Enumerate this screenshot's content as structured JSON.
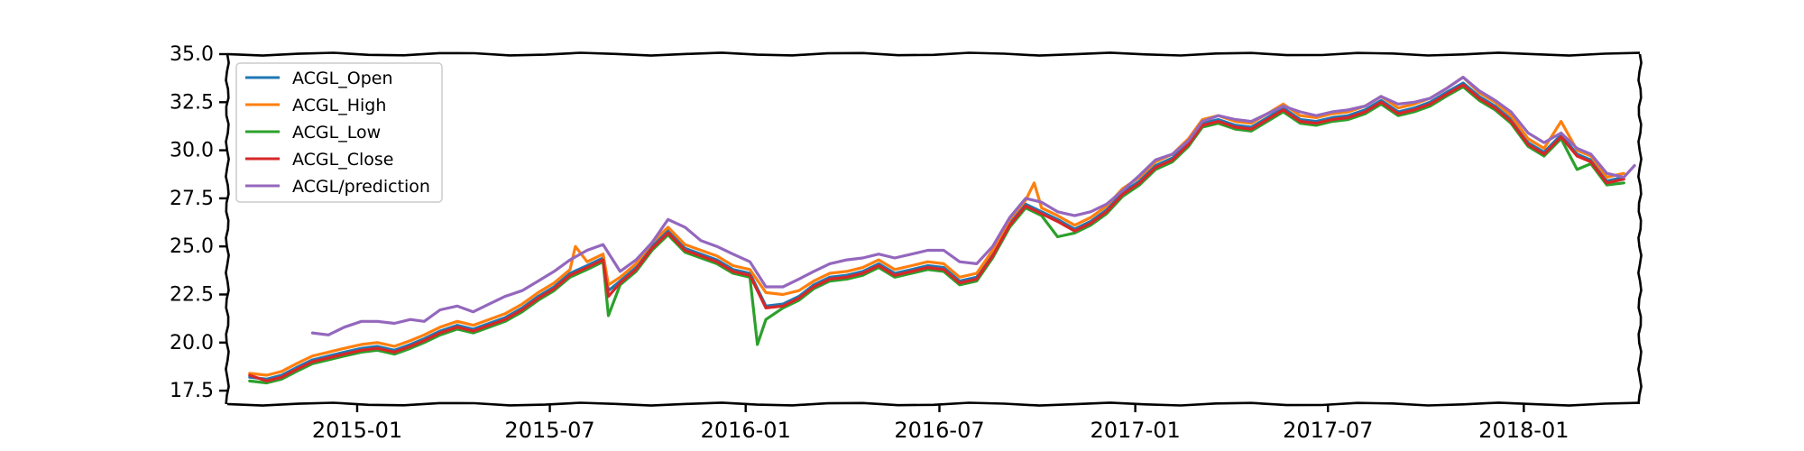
{
  "chart_data": {
    "type": "line",
    "title": "",
    "xlabel": "",
    "ylabel": "",
    "ylim": [
      16.8,
      35.0
    ],
    "xlim": [
      "2014-09-01",
      "2018-04-20"
    ],
    "grid": false,
    "legend_position": "top-left",
    "y_ticks": [
      "17.5",
      "20.0",
      "22.5",
      "25.0",
      "27.5",
      "30.0",
      "32.5",
      "35.0"
    ],
    "y_tick_values": [
      17.5,
      20.0,
      22.5,
      25.0,
      27.5,
      30.0,
      32.5,
      35.0
    ],
    "x_ticks": [
      "2015-01",
      "2015-07",
      "2016-01",
      "2016-07",
      "2017-01",
      "2017-07",
      "2018-01"
    ],
    "x_tick_dates": [
      "2015-01-01",
      "2015-07-01",
      "2016-01-01",
      "2016-07-01",
      "2017-01-01",
      "2017-07-01",
      "2018-01-01"
    ],
    "series": [
      {
        "name": "ACGL_Open",
        "color": "#1f77b4",
        "x": [
          "2014-09-22",
          "2014-10-08",
          "2014-10-22",
          "2014-11-05",
          "2014-11-20",
          "2014-12-05",
          "2014-12-20",
          "2015-01-05",
          "2015-01-20",
          "2015-02-05",
          "2015-02-20",
          "2015-03-05",
          "2015-03-20",
          "2015-04-05",
          "2015-04-20",
          "2015-05-05",
          "2015-05-20",
          "2015-06-05",
          "2015-06-20",
          "2015-07-05",
          "2015-07-20",
          "2015-08-05",
          "2015-08-20",
          "2015-08-25",
          "2015-09-05",
          "2015-09-20",
          "2015-10-05",
          "2015-10-20",
          "2015-11-05",
          "2015-11-20",
          "2015-12-05",
          "2015-12-20",
          "2016-01-05",
          "2016-01-20",
          "2016-02-05",
          "2016-02-20",
          "2016-03-05",
          "2016-03-20",
          "2016-04-05",
          "2016-04-20",
          "2016-05-05",
          "2016-05-20",
          "2016-06-05",
          "2016-06-20",
          "2016-07-05",
          "2016-07-20",
          "2016-08-05",
          "2016-08-20",
          "2016-09-05",
          "2016-09-20",
          "2016-10-05",
          "2016-10-20",
          "2016-11-05",
          "2016-11-20",
          "2016-12-05",
          "2016-12-20",
          "2017-01-05",
          "2017-01-20",
          "2017-02-05",
          "2017-02-20",
          "2017-03-05",
          "2017-03-20",
          "2017-04-05",
          "2017-04-20",
          "2017-05-05",
          "2017-05-20",
          "2017-06-05",
          "2017-06-20",
          "2017-07-05",
          "2017-07-20",
          "2017-08-05",
          "2017-08-20",
          "2017-09-05",
          "2017-09-20",
          "2017-10-05",
          "2017-10-20",
          "2017-11-05",
          "2017-11-20",
          "2017-12-05",
          "2017-12-20",
          "2018-01-05",
          "2018-01-20",
          "2018-02-05",
          "2018-02-20",
          "2018-03-05",
          "2018-03-20",
          "2018-04-05"
        ],
        "values": [
          18.2,
          18.1,
          18.3,
          18.7,
          19.1,
          19.3,
          19.5,
          19.7,
          19.8,
          19.6,
          19.9,
          20.2,
          20.6,
          20.9,
          20.7,
          21.0,
          21.3,
          21.8,
          22.4,
          22.9,
          23.6,
          24.0,
          24.4,
          22.7,
          23.2,
          23.9,
          25.0,
          25.8,
          24.9,
          24.6,
          24.3,
          23.8,
          23.6,
          21.9,
          22.0,
          22.4,
          23.0,
          23.4,
          23.5,
          23.7,
          24.1,
          23.6,
          23.8,
          24.0,
          23.9,
          23.2,
          23.4,
          24.6,
          26.2,
          27.2,
          26.8,
          26.4,
          25.9,
          26.3,
          26.9,
          27.8,
          28.4,
          29.2,
          29.6,
          30.4,
          31.4,
          31.6,
          31.3,
          31.2,
          31.7,
          32.2,
          31.6,
          31.5,
          31.7,
          31.8,
          32.1,
          32.6,
          32.0,
          32.2,
          32.5,
          33.0,
          33.5,
          32.8,
          32.3,
          31.6,
          30.4,
          29.9,
          30.8,
          29.8,
          29.5,
          28.4,
          28.6
        ]
      },
      {
        "name": "ACGL_High",
        "color": "#ff7f0e",
        "x": [
          "2014-09-22",
          "2014-10-08",
          "2014-10-22",
          "2014-11-05",
          "2014-11-20",
          "2014-12-05",
          "2014-12-20",
          "2015-01-05",
          "2015-01-20",
          "2015-02-05",
          "2015-02-20",
          "2015-03-05",
          "2015-03-20",
          "2015-04-05",
          "2015-04-20",
          "2015-05-05",
          "2015-05-20",
          "2015-06-05",
          "2015-06-20",
          "2015-07-05",
          "2015-07-20",
          "2015-07-25",
          "2015-08-05",
          "2015-08-20",
          "2015-08-25",
          "2015-09-05",
          "2015-09-20",
          "2015-10-05",
          "2015-10-20",
          "2015-11-05",
          "2015-11-20",
          "2015-12-05",
          "2015-12-20",
          "2016-01-05",
          "2016-01-20",
          "2016-02-05",
          "2016-02-20",
          "2016-03-05",
          "2016-03-20",
          "2016-04-05",
          "2016-04-20",
          "2016-05-05",
          "2016-05-20",
          "2016-06-05",
          "2016-06-20",
          "2016-07-05",
          "2016-07-20",
          "2016-08-05",
          "2016-08-20",
          "2016-09-05",
          "2016-09-20",
          "2016-09-28",
          "2016-10-05",
          "2016-10-20",
          "2016-11-05",
          "2016-11-20",
          "2016-12-05",
          "2016-12-20",
          "2017-01-05",
          "2017-01-20",
          "2017-02-05",
          "2017-02-20",
          "2017-03-05",
          "2017-03-20",
          "2017-04-05",
          "2017-04-20",
          "2017-05-05",
          "2017-05-20",
          "2017-06-05",
          "2017-06-20",
          "2017-07-05",
          "2017-07-20",
          "2017-08-05",
          "2017-08-20",
          "2017-09-05",
          "2017-09-20",
          "2017-10-05",
          "2017-10-20",
          "2017-11-05",
          "2017-11-20",
          "2017-12-05",
          "2017-12-20",
          "2018-01-05",
          "2018-01-20",
          "2018-02-05",
          "2018-02-20",
          "2018-03-05",
          "2018-03-20",
          "2018-04-05"
        ],
        "values": [
          18.4,
          18.3,
          18.5,
          18.9,
          19.3,
          19.5,
          19.7,
          19.9,
          20.0,
          19.8,
          20.1,
          20.4,
          20.8,
          21.1,
          20.9,
          21.2,
          21.5,
          22.0,
          22.6,
          23.1,
          23.8,
          25.0,
          24.2,
          24.6,
          23.0,
          23.4,
          24.1,
          25.2,
          26.0,
          25.1,
          24.8,
          24.5,
          24.0,
          23.8,
          22.6,
          22.5,
          22.7,
          23.2,
          23.6,
          23.7,
          23.9,
          24.3,
          23.8,
          24.0,
          24.2,
          24.1,
          23.4,
          23.6,
          24.8,
          26.4,
          27.4,
          28.3,
          27.0,
          26.6,
          26.1,
          26.5,
          27.1,
          28.0,
          28.6,
          29.4,
          29.8,
          30.6,
          31.6,
          31.8,
          31.5,
          31.4,
          31.9,
          32.4,
          31.8,
          31.7,
          31.9,
          32.0,
          32.3,
          32.8,
          32.2,
          32.4,
          32.7,
          33.2,
          33.8,
          33.0,
          32.5,
          31.8,
          30.6,
          30.1,
          31.5,
          30.0,
          29.7,
          28.6,
          28.8
        ]
      },
      {
        "name": "ACGL_Low",
        "color": "#2ca02c",
        "x": [
          "2014-09-22",
          "2014-10-08",
          "2014-10-22",
          "2014-11-05",
          "2014-11-20",
          "2014-12-05",
          "2014-12-20",
          "2015-01-05",
          "2015-01-20",
          "2015-02-05",
          "2015-02-20",
          "2015-03-05",
          "2015-03-20",
          "2015-04-05",
          "2015-04-20",
          "2015-05-05",
          "2015-05-20",
          "2015-06-05",
          "2015-06-20",
          "2015-07-05",
          "2015-07-20",
          "2015-08-05",
          "2015-08-20",
          "2015-08-25",
          "2015-09-05",
          "2015-09-20",
          "2015-10-05",
          "2015-10-20",
          "2015-11-05",
          "2015-11-20",
          "2015-12-05",
          "2015-12-20",
          "2016-01-05",
          "2016-01-12",
          "2016-01-20",
          "2016-02-05",
          "2016-02-20",
          "2016-03-05",
          "2016-03-20",
          "2016-04-05",
          "2016-04-20",
          "2016-05-05",
          "2016-05-20",
          "2016-06-05",
          "2016-06-20",
          "2016-07-05",
          "2016-07-20",
          "2016-08-05",
          "2016-08-20",
          "2016-09-05",
          "2016-09-20",
          "2016-10-05",
          "2016-10-20",
          "2016-11-05",
          "2016-11-20",
          "2016-12-05",
          "2016-12-20",
          "2017-01-05",
          "2017-01-20",
          "2017-02-05",
          "2017-02-20",
          "2017-03-05",
          "2017-03-20",
          "2017-04-05",
          "2017-04-20",
          "2017-05-05",
          "2017-05-20",
          "2017-06-05",
          "2017-06-20",
          "2017-07-05",
          "2017-07-20",
          "2017-08-05",
          "2017-08-20",
          "2017-09-05",
          "2017-09-20",
          "2017-10-05",
          "2017-10-20",
          "2017-11-05",
          "2017-11-20",
          "2017-12-05",
          "2017-12-20",
          "2018-01-05",
          "2018-01-20",
          "2018-02-05",
          "2018-02-20",
          "2018-03-05",
          "2018-03-20",
          "2018-04-05"
        ],
        "values": [
          18.0,
          17.9,
          18.1,
          18.5,
          18.9,
          19.1,
          19.3,
          19.5,
          19.6,
          19.4,
          19.7,
          20.0,
          20.4,
          20.7,
          20.5,
          20.8,
          21.1,
          21.6,
          22.2,
          22.7,
          23.4,
          23.8,
          24.2,
          21.4,
          23.0,
          23.7,
          24.8,
          25.6,
          24.7,
          24.4,
          24.1,
          23.6,
          23.4,
          19.9,
          21.2,
          21.8,
          22.2,
          22.8,
          23.2,
          23.3,
          23.5,
          23.9,
          23.4,
          23.6,
          23.8,
          23.7,
          23.0,
          23.2,
          24.4,
          26.0,
          27.0,
          26.6,
          25.5,
          25.7,
          26.1,
          26.7,
          27.6,
          28.2,
          29.0,
          29.4,
          30.2,
          31.2,
          31.4,
          31.1,
          31.0,
          31.5,
          32.0,
          31.4,
          31.3,
          31.5,
          31.6,
          31.9,
          32.4,
          31.8,
          32.0,
          32.3,
          32.8,
          33.3,
          32.6,
          32.1,
          31.4,
          30.2,
          29.7,
          30.6,
          29.0,
          29.3,
          28.2,
          28.3
        ]
      },
      {
        "name": "ACGL_Close",
        "color": "#d62728",
        "x": [
          "2014-09-22",
          "2014-10-08",
          "2014-10-22",
          "2014-11-05",
          "2014-11-20",
          "2014-12-05",
          "2014-12-20",
          "2015-01-05",
          "2015-01-20",
          "2015-02-05",
          "2015-02-20",
          "2015-03-05",
          "2015-03-20",
          "2015-04-05",
          "2015-04-20",
          "2015-05-05",
          "2015-05-20",
          "2015-06-05",
          "2015-06-20",
          "2015-07-05",
          "2015-07-20",
          "2015-08-05",
          "2015-08-20",
          "2015-08-25",
          "2015-09-05",
          "2015-09-20",
          "2015-10-05",
          "2015-10-20",
          "2015-11-05",
          "2015-11-20",
          "2015-12-05",
          "2015-12-20",
          "2016-01-05",
          "2016-01-20",
          "2016-02-05",
          "2016-02-20",
          "2016-03-05",
          "2016-03-20",
          "2016-04-05",
          "2016-04-20",
          "2016-05-05",
          "2016-05-20",
          "2016-06-05",
          "2016-06-20",
          "2016-07-05",
          "2016-07-20",
          "2016-08-05",
          "2016-08-20",
          "2016-09-05",
          "2016-09-20",
          "2016-10-05",
          "2016-10-20",
          "2016-11-05",
          "2016-11-20",
          "2016-12-05",
          "2016-12-20",
          "2017-01-05",
          "2017-01-20",
          "2017-02-05",
          "2017-02-20",
          "2017-03-05",
          "2017-03-20",
          "2017-04-05",
          "2017-04-20",
          "2017-05-05",
          "2017-05-20",
          "2017-06-05",
          "2017-06-20",
          "2017-07-05",
          "2017-07-20",
          "2017-08-05",
          "2017-08-20",
          "2017-09-05",
          "2017-09-20",
          "2017-10-05",
          "2017-10-20",
          "2017-11-05",
          "2017-11-20",
          "2017-12-05",
          "2017-12-20",
          "2018-01-05",
          "2018-01-20",
          "2018-02-05",
          "2018-02-20",
          "2018-03-05",
          "2018-03-20",
          "2018-04-05"
        ],
        "values": [
          18.3,
          18.0,
          18.2,
          18.6,
          19.0,
          19.2,
          19.4,
          19.6,
          19.7,
          19.5,
          19.8,
          20.1,
          20.5,
          20.8,
          20.6,
          20.9,
          21.2,
          21.7,
          22.3,
          22.8,
          23.5,
          23.9,
          24.3,
          22.4,
          23.1,
          23.8,
          24.9,
          25.7,
          24.8,
          24.5,
          24.2,
          23.7,
          23.5,
          21.8,
          21.9,
          22.3,
          22.9,
          23.3,
          23.4,
          23.6,
          24.0,
          23.5,
          23.7,
          23.9,
          23.8,
          23.1,
          23.3,
          24.5,
          26.1,
          27.1,
          26.7,
          26.3,
          25.8,
          26.2,
          26.8,
          27.7,
          28.3,
          29.1,
          29.5,
          30.3,
          31.3,
          31.5,
          31.2,
          31.1,
          31.6,
          32.1,
          31.5,
          31.4,
          31.6,
          31.7,
          32.0,
          32.5,
          31.9,
          32.1,
          32.4,
          32.9,
          33.4,
          32.7,
          32.2,
          31.5,
          30.3,
          29.8,
          30.7,
          29.7,
          29.4,
          28.3,
          28.5
        ]
      },
      {
        "name": "ACGL/prediction",
        "color": "#9467bd",
        "x": [
          "2014-11-20",
          "2014-12-05",
          "2014-12-20",
          "2015-01-05",
          "2015-01-20",
          "2015-02-05",
          "2015-02-20",
          "2015-03-05",
          "2015-03-20",
          "2015-04-05",
          "2015-04-20",
          "2015-05-05",
          "2015-05-20",
          "2015-06-05",
          "2015-06-20",
          "2015-07-05",
          "2015-07-20",
          "2015-08-05",
          "2015-08-20",
          "2015-09-05",
          "2015-09-20",
          "2015-10-05",
          "2015-10-20",
          "2015-11-05",
          "2015-11-20",
          "2015-12-05",
          "2015-12-20",
          "2016-01-05",
          "2016-01-20",
          "2016-02-05",
          "2016-02-20",
          "2016-03-05",
          "2016-03-20",
          "2016-04-05",
          "2016-04-20",
          "2016-05-05",
          "2016-05-20",
          "2016-06-05",
          "2016-06-20",
          "2016-07-05",
          "2016-07-20",
          "2016-08-05",
          "2016-08-20",
          "2016-09-05",
          "2016-09-20",
          "2016-10-05",
          "2016-10-20",
          "2016-11-05",
          "2016-11-20",
          "2016-12-05",
          "2016-12-20",
          "2017-01-05",
          "2017-01-20",
          "2017-02-05",
          "2017-02-20",
          "2017-03-05",
          "2017-03-20",
          "2017-04-05",
          "2017-04-20",
          "2017-05-05",
          "2017-05-20",
          "2017-06-05",
          "2017-06-20",
          "2017-07-05",
          "2017-07-20",
          "2017-08-05",
          "2017-08-20",
          "2017-09-05",
          "2017-09-20",
          "2017-10-05",
          "2017-10-20",
          "2017-11-05",
          "2017-11-20",
          "2017-12-05",
          "2017-12-20",
          "2018-01-05",
          "2018-01-20",
          "2018-02-05",
          "2018-02-20",
          "2018-03-05",
          "2018-03-20",
          "2018-04-05",
          "2018-04-15"
        ],
        "values": [
          20.5,
          20.4,
          20.8,
          21.1,
          21.1,
          21.0,
          21.2,
          21.1,
          21.7,
          21.9,
          21.6,
          22.0,
          22.4,
          22.7,
          23.2,
          23.7,
          24.3,
          24.8,
          25.1,
          23.7,
          24.3,
          25.2,
          26.4,
          26.0,
          25.3,
          25.0,
          24.6,
          24.2,
          22.9,
          22.9,
          23.3,
          23.7,
          24.1,
          24.3,
          24.4,
          24.6,
          24.4,
          24.6,
          24.8,
          24.8,
          24.2,
          24.1,
          25.0,
          26.5,
          27.5,
          27.3,
          26.8,
          26.6,
          26.8,
          27.2,
          27.9,
          28.7,
          29.5,
          29.8,
          30.5,
          31.5,
          31.8,
          31.6,
          31.5,
          31.9,
          32.3,
          32.0,
          31.8,
          32.0,
          32.1,
          32.3,
          32.8,
          32.4,
          32.5,
          32.7,
          33.2,
          33.8,
          33.1,
          32.6,
          32.0,
          30.9,
          30.4,
          30.9,
          30.1,
          29.8,
          28.8,
          28.6,
          29.2
        ]
      }
    ]
  }
}
